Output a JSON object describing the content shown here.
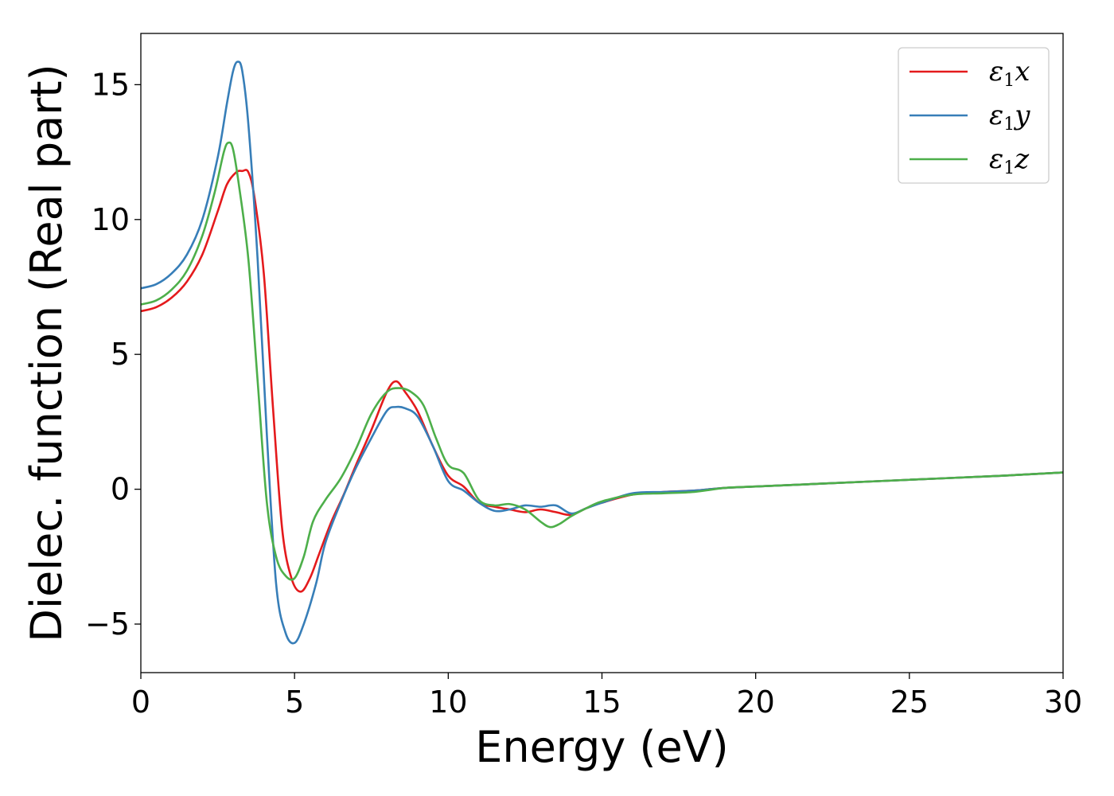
{
  "chart_data": {
    "type": "line",
    "title": "",
    "xlabel": "Energy (eV)",
    "ylabel": "Dielec. function (Real part)",
    "xlim": [
      0,
      30
    ],
    "ylim": [
      -6.8,
      16.9
    ],
    "xticks": [
      0,
      5,
      10,
      15,
      20,
      25,
      30
    ],
    "yticks": [
      -5,
      0,
      5,
      10,
      15
    ],
    "xtick_labels": [
      "0",
      "5",
      "10",
      "15",
      "20",
      "25",
      "30"
    ],
    "ytick_labels": [
      "−5",
      "0",
      "5",
      "10",
      "15"
    ],
    "grid": false,
    "legend_position": "top-right",
    "series": [
      {
        "name": "ε₁x",
        "legend_base": "ε",
        "legend_sub": "1",
        "legend_var": "x",
        "color": "#e41a1c",
        "x": [
          0,
          0.5,
          1.0,
          1.5,
          2.0,
          2.5,
          2.8,
          3.1,
          3.3,
          3.5,
          3.7,
          4.0,
          4.3,
          4.6,
          4.9,
          5.2,
          5.5,
          5.8,
          6.2,
          6.6,
          7.0,
          7.5,
          8.0,
          8.3,
          8.6,
          9.0,
          9.5,
          10.0,
          10.5,
          11.0,
          11.5,
          12.0,
          12.5,
          13.0,
          13.5,
          14.0,
          14.5,
          15.0,
          16.0,
          17.0,
          18.0,
          19.0,
          20.0,
          22.0,
          25.0,
          28.0,
          30.0
        ],
        "y": [
          6.6,
          6.75,
          7.1,
          7.7,
          8.7,
          10.3,
          11.3,
          11.75,
          11.8,
          11.75,
          10.8,
          8.0,
          3.0,
          -1.5,
          -3.3,
          -3.8,
          -3.3,
          -2.4,
          -1.2,
          -0.2,
          0.9,
          2.2,
          3.6,
          4.0,
          3.6,
          2.9,
          1.6,
          0.5,
          0.1,
          -0.5,
          -0.65,
          -0.75,
          -0.85,
          -0.75,
          -0.85,
          -0.95,
          -0.7,
          -0.5,
          -0.2,
          -0.1,
          -0.05,
          0.05,
          0.1,
          0.2,
          0.35,
          0.5,
          0.62
        ]
      },
      {
        "name": "ε₁y",
        "legend_base": "ε",
        "legend_sub": "1",
        "legend_var": "y",
        "color": "#377eb8",
        "x": [
          0,
          0.5,
          1.0,
          1.5,
          2.0,
          2.5,
          2.8,
          3.0,
          3.15,
          3.3,
          3.5,
          3.8,
          4.1,
          4.4,
          4.7,
          5.0,
          5.3,
          5.7,
          6.0,
          6.5,
          7.0,
          7.5,
          8.0,
          8.3,
          8.6,
          9.0,
          9.5,
          10.0,
          10.5,
          11.0,
          11.5,
          12.0,
          12.5,
          13.0,
          13.5,
          14.0,
          14.5,
          15.0,
          16.0,
          17.0,
          18.0,
          19.0,
          20.0,
          22.0,
          25.0,
          28.0,
          30.0
        ],
        "y": [
          7.45,
          7.6,
          8.0,
          8.7,
          10.0,
          12.3,
          14.3,
          15.5,
          15.85,
          15.5,
          13.5,
          8.5,
          2.0,
          -3.5,
          -5.3,
          -5.7,
          -5.0,
          -3.5,
          -2.0,
          -0.5,
          0.8,
          1.9,
          2.9,
          3.05,
          3.0,
          2.7,
          1.6,
          0.3,
          -0.05,
          -0.5,
          -0.8,
          -0.75,
          -0.6,
          -0.65,
          -0.6,
          -0.9,
          -0.7,
          -0.5,
          -0.15,
          -0.1,
          -0.05,
          0.05,
          0.1,
          0.2,
          0.35,
          0.5,
          0.62
        ]
      },
      {
        "name": "ε₁z",
        "legend_base": "ε",
        "legend_sub": "1",
        "legend_var": "z",
        "color": "#4daf4a",
        "x": [
          0,
          0.5,
          1.0,
          1.5,
          2.0,
          2.4,
          2.7,
          2.85,
          3.0,
          3.2,
          3.5,
          3.8,
          4.1,
          4.4,
          4.7,
          5.0,
          5.3,
          5.6,
          6.0,
          6.5,
          7.0,
          7.5,
          8.0,
          8.4,
          8.8,
          9.2,
          9.6,
          10.0,
          10.5,
          11.0,
          11.5,
          12.0,
          12.5,
          13.0,
          13.3,
          13.6,
          14.0,
          14.5,
          15.0,
          16.0,
          17.0,
          18.0,
          19.0,
          20.0,
          22.0,
          25.0,
          28.0,
          30.0
        ],
        "y": [
          6.85,
          7.0,
          7.4,
          8.1,
          9.4,
          11.0,
          12.5,
          12.85,
          12.6,
          11.2,
          8.5,
          4.0,
          -0.5,
          -2.5,
          -3.2,
          -3.3,
          -2.5,
          -1.2,
          -0.4,
          0.4,
          1.5,
          2.8,
          3.6,
          3.75,
          3.6,
          3.1,
          1.9,
          0.9,
          0.6,
          -0.4,
          -0.6,
          -0.55,
          -0.75,
          -1.2,
          -1.4,
          -1.3,
          -1.0,
          -0.7,
          -0.45,
          -0.2,
          -0.15,
          -0.1,
          0.05,
          0.1,
          0.2,
          0.35,
          0.5,
          0.62
        ]
      }
    ]
  }
}
